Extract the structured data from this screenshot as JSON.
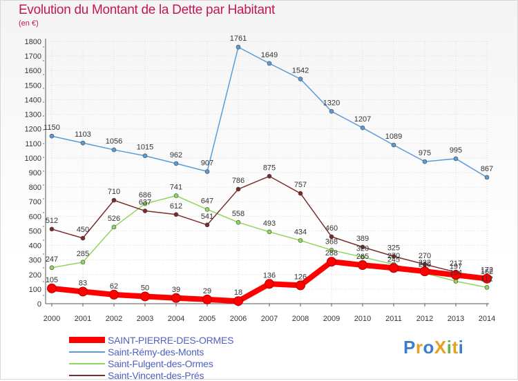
{
  "title": "Evolution du Montant de la Dette par Habitant",
  "subtitle": "(en €)",
  "logo": {
    "text": "ProXiti",
    "letters": [
      "P",
      "r",
      "o",
      "X",
      "i",
      "t",
      "i"
    ],
    "colors": [
      "#3b7ec9",
      "#e8a020",
      "#3b7ec9",
      "#e8a020",
      "#6ab04c",
      "#e8a020",
      "#3b7ec9"
    ]
  },
  "chart_data": {
    "type": "line",
    "title": "Evolution du Montant de la Dette par Habitant",
    "ylabel": "(en €)",
    "xlabel": "",
    "x": [
      "2000",
      "2001",
      "2002",
      "2003",
      "2004",
      "2005",
      "2006",
      "2007",
      "2008",
      "2009",
      "2010",
      "2011",
      "2012",
      "2013",
      "2014"
    ],
    "ylim": [
      0,
      1800
    ],
    "yticks": [
      "0",
      "100",
      "200",
      "300",
      "400",
      "500",
      "600",
      "700",
      "800",
      "900",
      "1000",
      "1100",
      "1200",
      "1300",
      "1400",
      "1500",
      "1600",
      "1700",
      "1800"
    ],
    "grid": true,
    "legend_position": "bottom-left",
    "series": [
      {
        "name": "SAINT-PIERRE-DES-ORMES",
        "color": "#ff0000",
        "highlight": true,
        "values": [
          105,
          83,
          62,
          50,
          39,
          29,
          18,
          136,
          126,
          288,
          265,
          245,
          222,
          197,
          172
        ],
        "labels": [
          "105",
          "83",
          "62",
          "50",
          "39",
          "29",
          "18",
          "136",
          "126",
          "288",
          "265",
          "245",
          "222",
          "197",
          "172"
        ]
      },
      {
        "name": "Saint-Rémy-des-Monts",
        "color": "#5b9bd5",
        "values": [
          1150,
          1103,
          1056,
          1015,
          962,
          907,
          1761,
          1649,
          1542,
          1320,
          1207,
          1089,
          975,
          995,
          867
        ],
        "labels": [
          "1150",
          "1103",
          "1056",
          "1015",
          "962",
          "907",
          "1761",
          "1649",
          "1542",
          "1320",
          "1207",
          "1089",
          "975",
          "995",
          "867"
        ]
      },
      {
        "name": "Saint-Fulgent-des-Ormes",
        "color": "#8fd65a",
        "values": [
          247,
          285,
          526,
          686,
          741,
          647,
          558,
          493,
          434,
          368,
          320,
          270,
          210,
          154,
          112
        ],
        "labels": [
          "247",
          "285",
          "526",
          "686",
          "741",
          "647",
          "558",
          "493",
          "434",
          "368",
          "320",
          "270",
          "210",
          "154",
          "112"
        ]
      },
      {
        "name": "Saint-Vincent-des-Prés",
        "color": "#7a2a2a",
        "values": [
          512,
          450,
          710,
          637,
          612,
          541,
          786,
          875,
          757,
          460,
          389,
          325,
          270,
          217,
          162
        ],
        "labels": [
          "512",
          "450",
          "710",
          "637",
          "612",
          "541",
          "786",
          "875",
          "757",
          "460",
          "389",
          "325",
          "270",
          "217",
          "162"
        ]
      }
    ]
  }
}
